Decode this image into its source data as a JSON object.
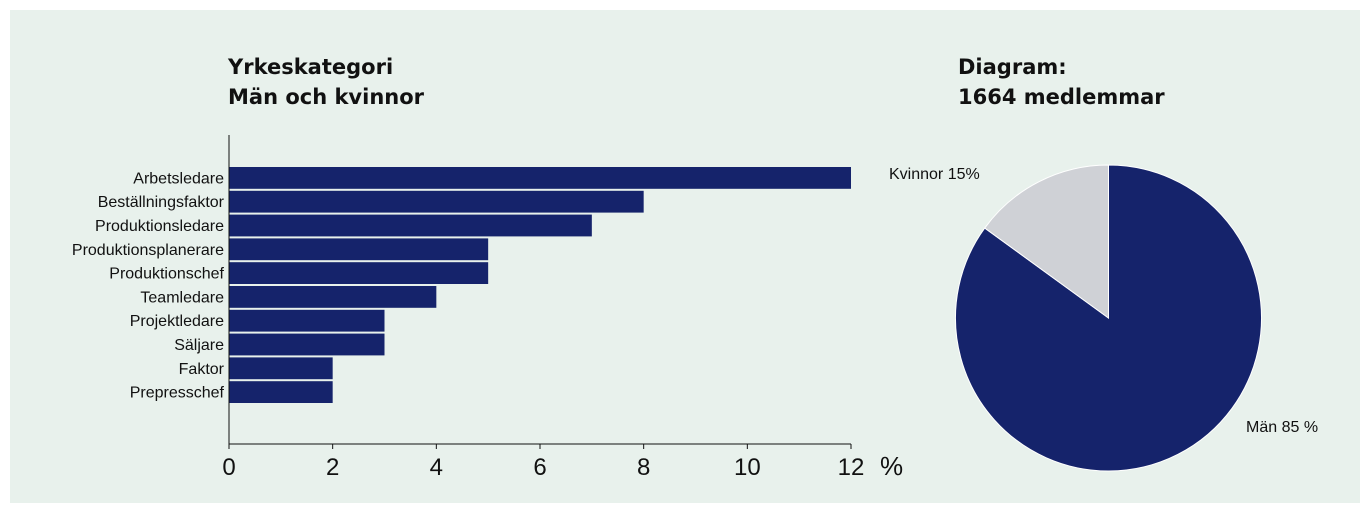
{
  "colors": {
    "background": "#e8f1ec",
    "bar": "#15236b",
    "pie_man": "#15236b",
    "pie_kvinnor": "#cfd1d6",
    "text": "#111111"
  },
  "chart_data": [
    {
      "type": "bar",
      "orientation": "horizontal",
      "title": [
        "Yrkeskategori",
        "Män och kvinnor"
      ],
      "categories": [
        "Arbetsledare",
        "Beställningsfaktor",
        "Produktionsledare",
        "Produktionsplanerare",
        "Produktionschef",
        "Teamledare",
        "Projektledare",
        "Säljare",
        "Faktor",
        "Prepresschef"
      ],
      "values": [
        12,
        8,
        7,
        5,
        5,
        4,
        3,
        3,
        2,
        2
      ],
      "xticks": [
        "0",
        "2",
        "4",
        "6",
        "8",
        "10",
        "12"
      ],
      "xunit": "%",
      "xlim": [
        0,
        12
      ],
      "grid": false
    },
    {
      "type": "pie",
      "title": [
        "Diagram:",
        "1664 medlemmar"
      ],
      "slices": [
        {
          "label": "Män 85 %",
          "value": 85
        },
        {
          "label": "Kvinnor 15%",
          "value": 15
        }
      ]
    }
  ]
}
